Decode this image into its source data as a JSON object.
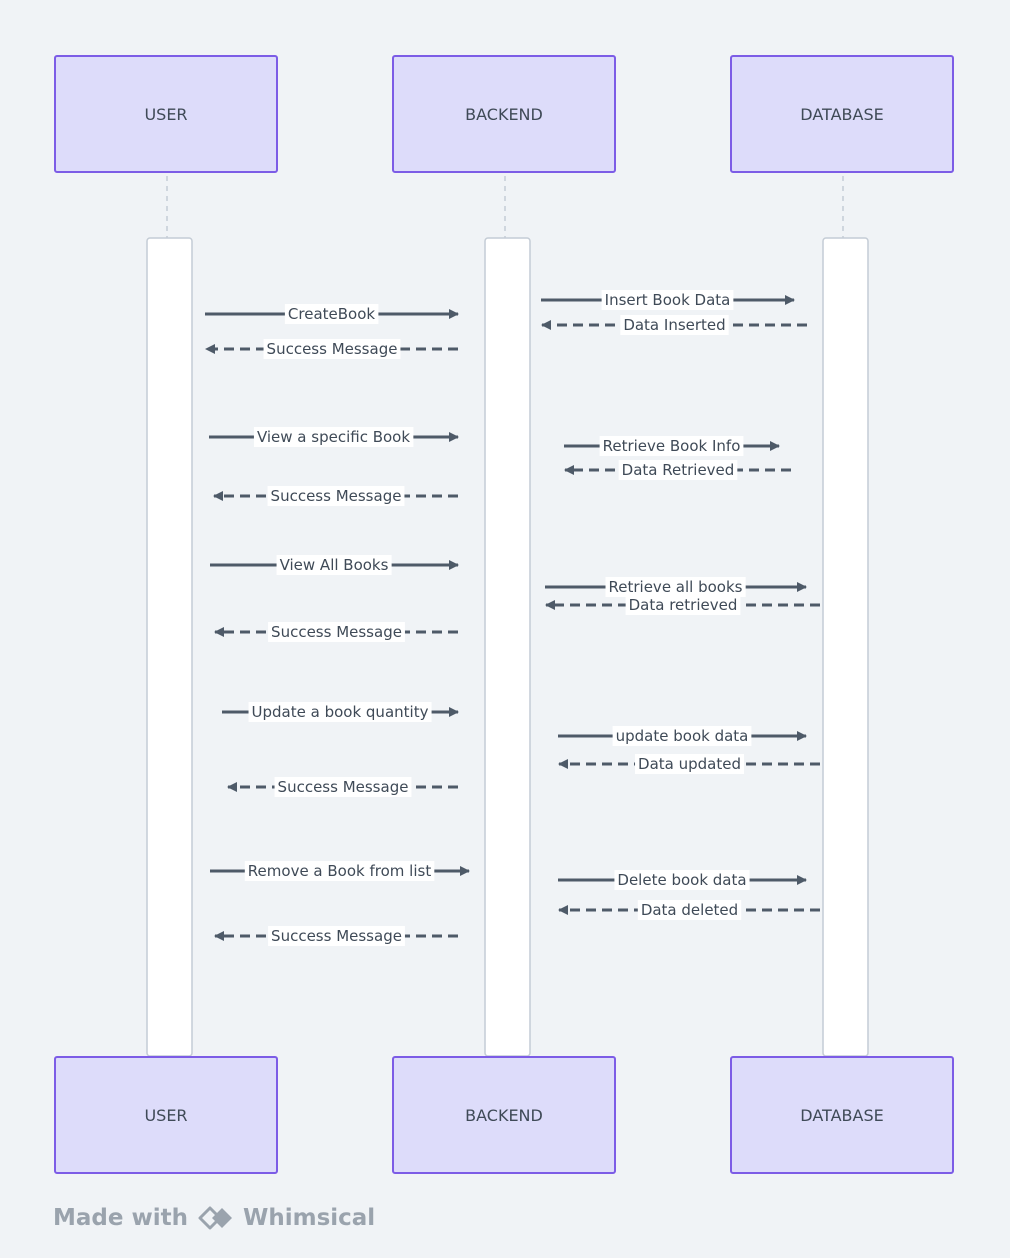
{
  "actors": [
    {
      "id": "user",
      "label": "USER"
    },
    {
      "id": "backend",
      "label": "BACKEND"
    },
    {
      "id": "database",
      "label": "DATABASE"
    }
  ],
  "messages": [
    {
      "label": "CreateBook",
      "from": "user",
      "to": "backend",
      "type": "sync"
    },
    {
      "label": "Success Message",
      "from": "backend",
      "to": "user",
      "type": "reply"
    },
    {
      "label": "Insert Book Data",
      "from": "backend",
      "to": "database",
      "type": "sync"
    },
    {
      "label": "Data Inserted",
      "from": "database",
      "to": "backend",
      "type": "reply"
    },
    {
      "label": "View a specific Book",
      "from": "user",
      "to": "backend",
      "type": "sync"
    },
    {
      "label": "Retrieve Book Info",
      "from": "backend",
      "to": "database",
      "type": "sync"
    },
    {
      "label": "Data Retrieved",
      "from": "database",
      "to": "backend",
      "type": "reply"
    },
    {
      "label": "Success Message",
      "from": "backend",
      "to": "user",
      "type": "reply"
    },
    {
      "label": "View All Books",
      "from": "user",
      "to": "backend",
      "type": "sync"
    },
    {
      "label": "Retrieve all books",
      "from": "backend",
      "to": "database",
      "type": "sync"
    },
    {
      "label": "Data retrieved",
      "from": "database",
      "to": "backend",
      "type": "reply"
    },
    {
      "label": "Success Message",
      "from": "backend",
      "to": "user",
      "type": "reply"
    },
    {
      "label": "Update a book quantity",
      "from": "user",
      "to": "backend",
      "type": "sync"
    },
    {
      "label": "update book data",
      "from": "backend",
      "to": "database",
      "type": "sync"
    },
    {
      "label": "Data updated",
      "from": "database",
      "to": "backend",
      "type": "reply"
    },
    {
      "label": "Success Message",
      "from": "backend",
      "to": "user",
      "type": "reply"
    },
    {
      "label": "Remove a Book from list",
      "from": "user",
      "to": "backend",
      "type": "sync"
    },
    {
      "label": "Delete book data",
      "from": "backend",
      "to": "database",
      "type": "sync"
    },
    {
      "label": "Data deleted",
      "from": "database",
      "to": "backend",
      "type": "reply"
    },
    {
      "label": "Success Message",
      "from": "backend",
      "to": "user",
      "type": "reply"
    }
  ],
  "footer": {
    "prefix": "Made with",
    "brand": "Whimsical"
  },
  "colors": {
    "background": "#f0f3f6",
    "actor_fill": "#dddcfa",
    "actor_border": "#7c5ce6",
    "arrow": "#4e5a68",
    "text": "#3f4a57",
    "activation_fill": "#ffffff",
    "activation_border": "#c4ccd5",
    "footer_text": "#9aa3ad"
  }
}
